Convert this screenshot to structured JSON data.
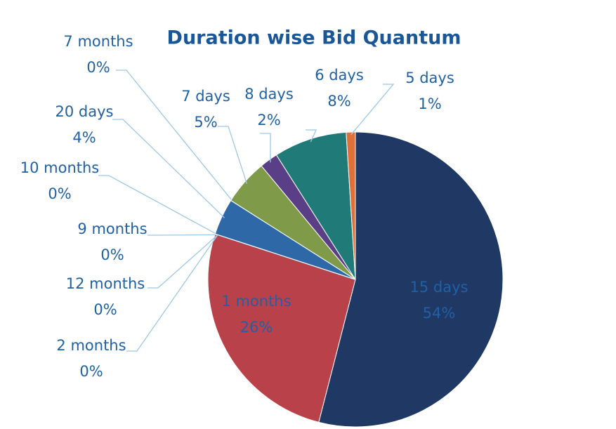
{
  "chart_data": {
    "type": "pie",
    "title": "Duration wise Bid Quantum",
    "categories": [
      "15 days",
      "1 months",
      "2 months",
      "12 months",
      "9 months",
      "10 months",
      "20 days",
      "7 months",
      "7 days",
      "8 days",
      "6 days",
      "5 days"
    ],
    "values": [
      54,
      26,
      0,
      0,
      0,
      0,
      4,
      0,
      5,
      2,
      8,
      1
    ],
    "value_labels": [
      "54%",
      "26%",
      "0%",
      "0%",
      "0%",
      "0%",
      "4%",
      "0%",
      "5%",
      "2%",
      "8%",
      "1%"
    ],
    "colors": [
      "#1f3864",
      "#b9424a",
      "#9cc8e6",
      "#9cc8e6",
      "#9cc8e6",
      "#9cc8e6",
      "#2f68a6",
      "#9cc8e6",
      "#7f9a48",
      "#5a3f86",
      "#1f7a78",
      "#e0703a"
    ]
  }
}
